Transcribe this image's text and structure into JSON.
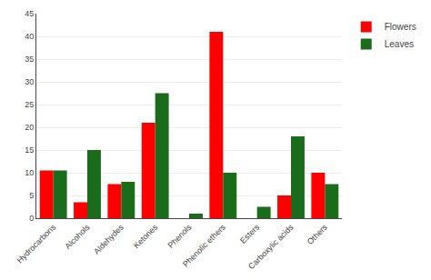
{
  "chart_data": {
    "type": "bar",
    "categories": [
      "Hydrocarbons",
      "Alcohols",
      "Aldehydes",
      "Ketones",
      "Phenols",
      "Phenolic ethers",
      "Esters",
      "Carboxylic acids",
      "Others"
    ],
    "series": [
      {
        "name": "Flowers",
        "color": "#FF0000",
        "values": [
          10.5,
          3.5,
          7.5,
          21,
          0,
          41,
          0,
          5,
          10
        ]
      },
      {
        "name": "Leaves",
        "color": "#1A6B1A",
        "values": [
          10.5,
          15,
          8,
          27.5,
          1,
          10,
          2.5,
          18,
          7.5
        ]
      }
    ],
    "ylim": [
      0,
      45
    ],
    "yticks": [
      0,
      5,
      10,
      15,
      20,
      25,
      30,
      35,
      40,
      45
    ],
    "grid": true,
    "legend": "right"
  }
}
